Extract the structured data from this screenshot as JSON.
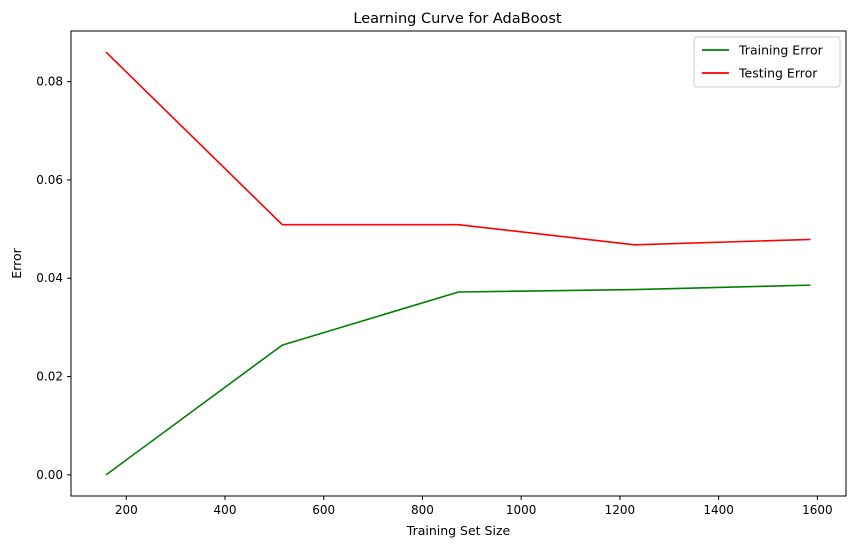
{
  "chart_data": {
    "type": "line",
    "title": "Learning Curve for AdaBoost",
    "xlabel": "Training Set Size",
    "ylabel": "Error",
    "xlim": [
      88,
      1658
    ],
    "ylim": [
      -0.0043,
      0.0903
    ],
    "xticks": [
      200,
      400,
      600,
      800,
      1000,
      1200,
      1400,
      1600
    ],
    "yticks": [
      0.0,
      0.02,
      0.04,
      0.06,
      0.08
    ],
    "xtick_labels": [
      "200",
      "400",
      "600",
      "800",
      "1000",
      "1200",
      "1400",
      "1600"
    ],
    "ytick_labels": [
      "0.00",
      "0.02",
      "0.04",
      "0.06",
      "0.08"
    ],
    "grid": false,
    "legend_position": "top-right",
    "x": [
      159,
      516,
      873,
      1229,
      1586
    ],
    "series": [
      {
        "name": "Training Error",
        "color": "#008000",
        "values": [
          0.0,
          0.0264,
          0.0372,
          0.0377,
          0.0386
        ]
      },
      {
        "name": "Testing Error",
        "color": "#ff0000",
        "values": [
          0.086,
          0.0509,
          0.0509,
          0.0468,
          0.0479
        ]
      }
    ]
  }
}
